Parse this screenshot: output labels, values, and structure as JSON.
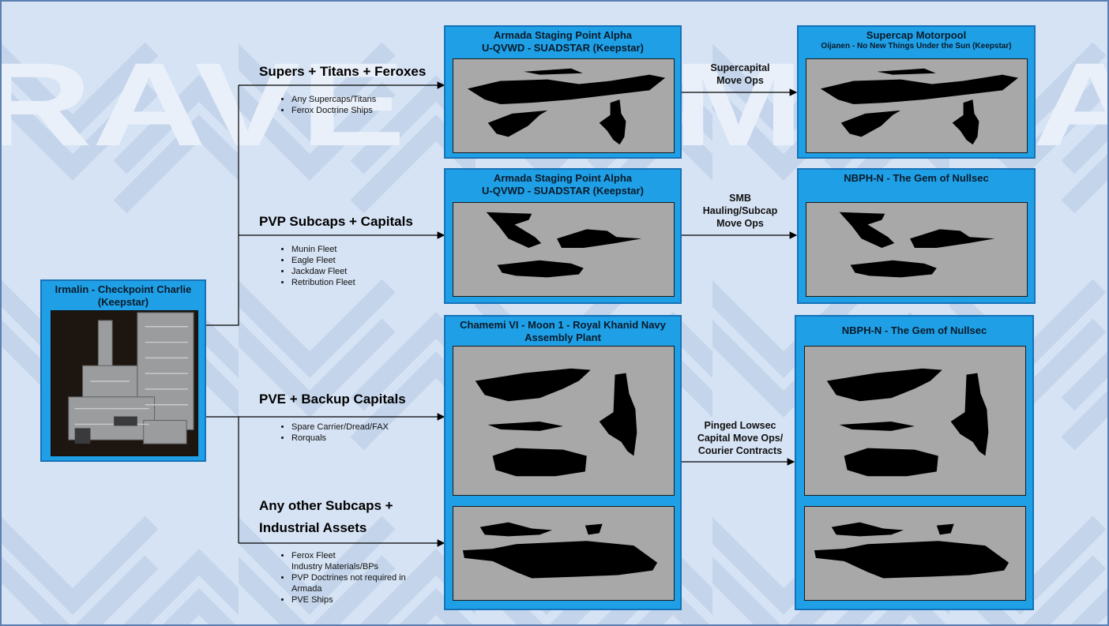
{
  "colors": {
    "background": "#d6e3f4",
    "node_fill": "#1fa0e6",
    "node_border": "#1672b8",
    "panel_fill": "#a8a8a8",
    "silhouette": "#000000",
    "watermark": "#e9f0fa"
  },
  "watermark": {
    "text": "RAVE ARMADA"
  },
  "source": {
    "title": "Irmalin - Checkpoint Charlie",
    "subtitle": "(Keepstar)"
  },
  "categories": [
    {
      "label": "Supers + Titans + Feroxes",
      "items": [
        "Any Supercaps/Titans",
        "Ferox Doctrine Ships"
      ]
    },
    {
      "label": "PVP Subcaps + Capitals",
      "items": [
        "Munin Fleet",
        "Eagle Fleet",
        "Jackdaw Fleet",
        "Retribution Fleet"
      ]
    },
    {
      "label": "PVE + Backup Capitals",
      "items": [
        "Spare Carrier/Dread/FAX",
        "Rorquals"
      ]
    },
    {
      "label_line1": "Any other Subcaps +",
      "label_line2": "Industrial Assets",
      "items": [
        "Ferox Fleet",
        "Industry Materials/BPs",
        "PVP Doctrines not required in",
        "Armada",
        "PVE Ships"
      ]
    }
  ],
  "staging": [
    {
      "title": "Armada Staging Point Alpha",
      "subtitle": "U-QVWD - SUADSTAR (Keepstar)"
    },
    {
      "title": "Armada Staging Point Alpha",
      "subtitle": "U-QVWD - SUADSTAR (Keepstar)"
    },
    {
      "title": "Chamemi VI - Moon 1 - Royal Khanid Navy",
      "subtitle": "Assembly Plant"
    }
  ],
  "destinations": [
    {
      "title": "Supercap Motorpool",
      "subtitle": "Oijanen - No New Things Under the Sun (Keepstar)"
    },
    {
      "title": "NBPH-N - The Gem of Nullsec"
    },
    {
      "title": "NBPH-N - The Gem of Nullsec"
    }
  ],
  "moves": [
    {
      "line1": "Supercapital",
      "line2": "Move Ops"
    },
    {
      "line1": "SMB",
      "line2": "Hauling/Subcap",
      "line3": "Move Ops"
    },
    {
      "line1": "Pinged Lowsec",
      "line2": "Capital Move Ops/",
      "line3": "Courier Contracts"
    }
  ]
}
